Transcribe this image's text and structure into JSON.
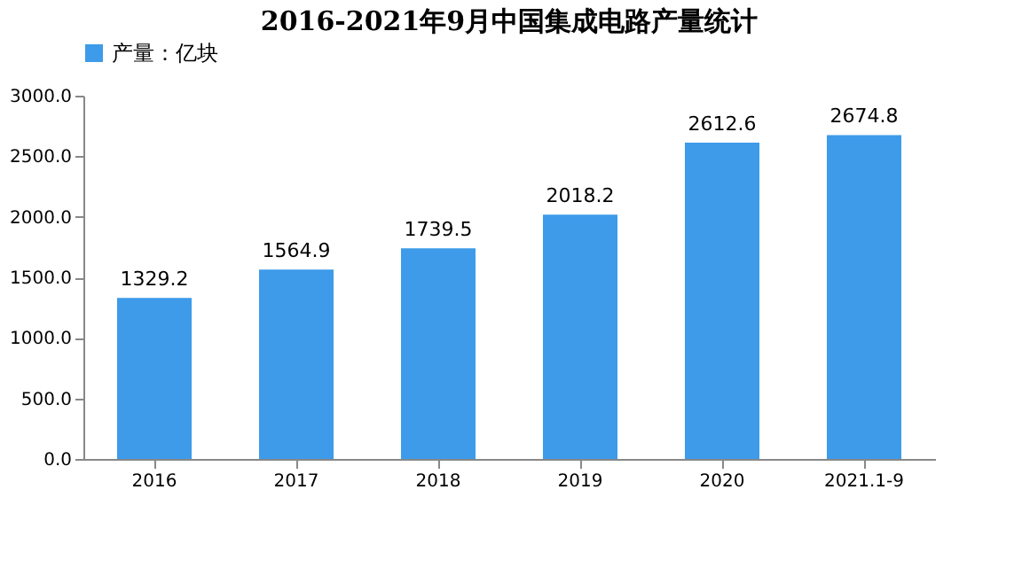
{
  "chart_data": {
    "type": "bar",
    "title": "2016-2021年9月中国集成电路产量统计",
    "categories": [
      "2016",
      "2017",
      "2018",
      "2019",
      "2020",
      "2021.1-9"
    ],
    "series": [
      {
        "name": "产量：亿块",
        "color": "#3d9be9",
        "values": [
          1329.2,
          1564.9,
          1739.5,
          2018.2,
          2612.6,
          2674.8
        ]
      }
    ],
    "ylim": [
      0,
      3000
    ],
    "yticks": [
      {
        "value": 0,
        "label": "0.0"
      },
      {
        "value": 500,
        "label": "500.0"
      },
      {
        "value": 1000,
        "label": "1000.0"
      },
      {
        "value": 1500,
        "label": "1500.0"
      },
      {
        "value": 2000,
        "label": "2000.0"
      },
      {
        "value": 2500,
        "label": "2500.0"
      },
      {
        "value": 3000,
        "label": "3000.0"
      }
    ],
    "grid": false,
    "legend": "top",
    "data_labels": true
  }
}
